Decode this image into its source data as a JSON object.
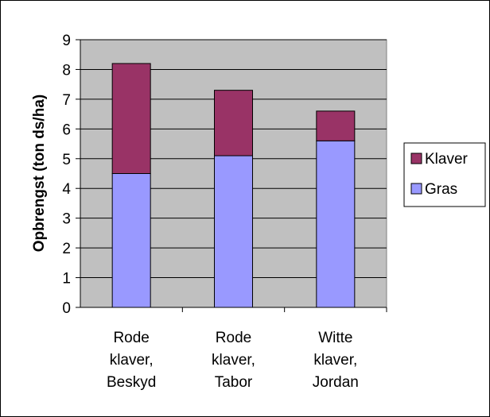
{
  "chart_data": {
    "type": "bar",
    "stacked": true,
    "categories": [
      [
        "Rode",
        "klaver,",
        "Beskyd"
      ],
      [
        "Rode",
        "klaver,",
        "Tabor"
      ],
      [
        "Witte",
        "klaver,",
        "Jordan"
      ]
    ],
    "series": [
      {
        "name": "Gras",
        "values": [
          4.5,
          5.1,
          5.6
        ],
        "color": "#9999ff"
      },
      {
        "name": "Klaver",
        "values": [
          3.7,
          2.2,
          1.0
        ],
        "color": "#993366"
      }
    ],
    "ylabel": "Opbrengst (ton ds/ha)",
    "ylim": [
      0,
      9
    ],
    "yticks": [
      0,
      1,
      2,
      3,
      4,
      5,
      6,
      7,
      8,
      9
    ],
    "grid": true,
    "plot_background": "#c0c0c0",
    "legend_position": "right",
    "legend_order": [
      "Klaver",
      "Gras"
    ]
  }
}
